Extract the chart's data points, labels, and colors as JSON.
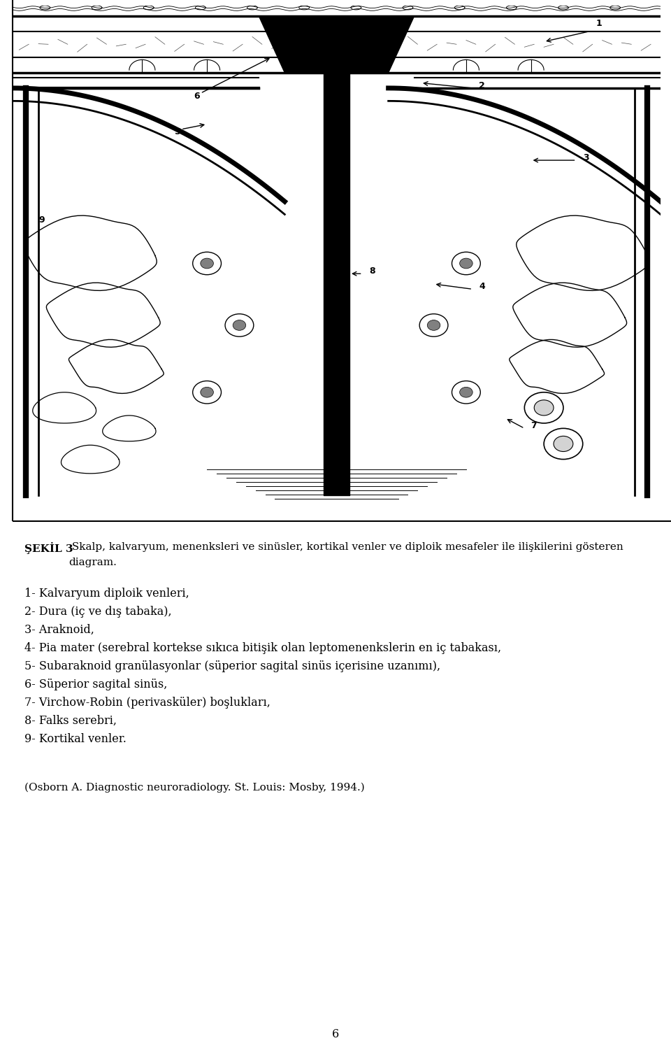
{
  "bg_color": "#ffffff",
  "fig_width": 9.6,
  "fig_height": 15.11,
  "caption_bold": "ŞEKİL 3",
  "caption_normal": " Skalp, kalvaryum, menenksleri ve sinüsler, kortikal venler ve diploik mesafeler ile ilişkilerini gösteren",
  "caption_line2": "diagram.",
  "items": [
    "1- Kalvaryum diploik venleri,",
    "2- Dura (iç ve dış tabaka),",
    "3- Araknoid,",
    "4- Pia mater (serebral kortekse sıkıca bitişik olan leptomenenkslerin en iç tabakası,",
    "5- Subaraknoid granülasyonlar (süperior sagital sinüs içerisine uzanımı),",
    "6- Süperior sagital sinüs,",
    "7- Virchow-Robin (perivasküler) boşlukları,",
    "8- Falks serebri,",
    "9- Kortikal venler."
  ],
  "reference": "(Osborn A. Diagnostic neuroradiology. St. Louis: Mosby, 1994.)",
  "page_number": "6",
  "font_size_caption": 11.0,
  "font_size_items": 11.5,
  "font_size_ref": 11.0,
  "font_size_page": 11.5
}
